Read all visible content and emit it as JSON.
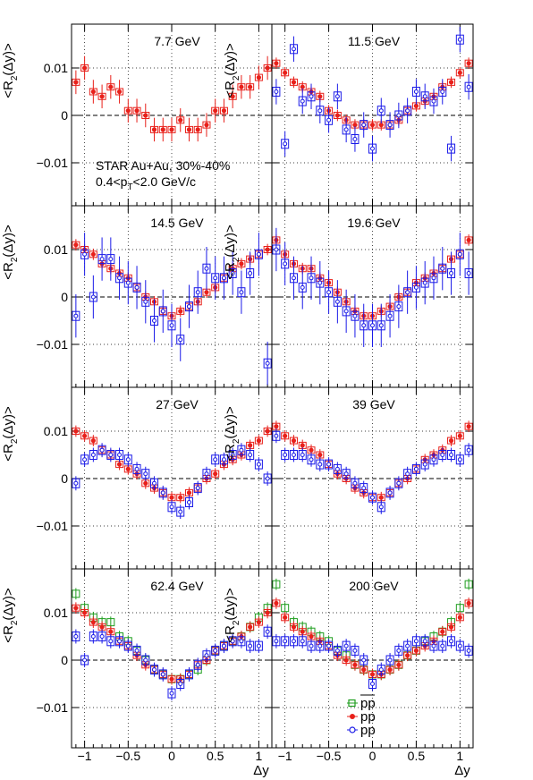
{
  "figure": {
    "ylabel_main": "<R",
    "ylabel_sub": "2",
    "ylabel_tail": "(Δy)>",
    "xlabel": "Δy",
    "annotation_line1": "STAR Au+Au, 30%-40%",
    "annotation_line2_pre": "0.4<p",
    "annotation_line2_sub": "T",
    "annotation_line2_post": "<2.0 GeV/c",
    "x_ticks": [
      "−1",
      "−0.5",
      "0",
      "0.5",
      "1"
    ],
    "y_ticks": [
      "0.01",
      "0",
      "−0.01"
    ],
    "legend": [
      {
        "label": "pp",
        "overline": true,
        "color": "#1f9e1f",
        "marker": "open-square"
      },
      {
        "label": "pp",
        "overline": false,
        "color": "#e8201a",
        "marker": "filled-circle"
      },
      {
        "label": "pp",
        "overline": false,
        "color": "#1a1ae8",
        "marker": "open-circle"
      }
    ],
    "colors": {
      "antiproton": "#1f9e1f",
      "mixed": "#e8201a",
      "proton": "#1a1ae8"
    }
  },
  "chart_data": [
    {
      "type": "scatter",
      "title": "7.7 GeV",
      "xlim": [
        -1.15,
        1.15
      ],
      "ylim": [
        -0.019,
        0.019
      ],
      "grid": true,
      "x": [
        -1.1,
        -1.0,
        -0.9,
        -0.8,
        -0.7,
        -0.6,
        -0.5,
        -0.4,
        -0.3,
        -0.2,
        -0.1,
        0.0,
        0.1,
        0.2,
        0.3,
        0.4,
        0.5,
        0.6,
        0.7,
        0.8,
        0.9,
        1.0,
        1.1
      ],
      "series": [
        {
          "values": [
            0.007,
            0.01,
            0.005,
            0.004,
            0.006,
            0.005,
            0.001,
            0.001,
            0.0,
            -0.003,
            -0.003,
            -0.003,
            -0.001,
            -0.003,
            -0.003,
            -0.002,
            0.001,
            0.001,
            0.004,
            0.006,
            0.006,
            0.008,
            0.01
          ],
          "color": "mixed"
        }
      ]
    },
    {
      "type": "scatter",
      "title": "11.5 GeV",
      "xlim": [
        -1.15,
        1.15
      ],
      "ylim": [
        -0.019,
        0.019
      ],
      "grid": true,
      "x": [
        -1.1,
        -1.0,
        -0.9,
        -0.8,
        -0.7,
        -0.6,
        -0.5,
        -0.4,
        -0.3,
        -0.2,
        -0.1,
        0.0,
        0.1,
        0.2,
        0.3,
        0.4,
        0.5,
        0.6,
        0.7,
        0.8,
        0.9,
        1.0,
        1.1
      ],
      "series": [
        {
          "values": [
            0.011,
            0.009,
            0.007,
            0.006,
            0.005,
            0.004,
            0.001,
            0.0,
            -0.001,
            -0.002,
            -0.002,
            -0.002,
            -0.002,
            -0.002,
            -0.001,
            0.001,
            0.002,
            0.003,
            0.004,
            0.006,
            0.007,
            0.009,
            0.011
          ],
          "color": "mixed"
        },
        {
          "values": [
            0.005,
            -0.006,
            0.014,
            0.003,
            0.004,
            0.001,
            -0.001,
            0.004,
            -0.003,
            -0.005,
            -0.002,
            -0.007,
            0.001,
            -0.002,
            0.0,
            0.001,
            0.005,
            0.004,
            0.003,
            0.005,
            -0.007,
            0.016,
            0.006
          ],
          "color": "proton"
        }
      ]
    },
    {
      "type": "scatter",
      "title": "14.5 GeV",
      "xlim": [
        -1.15,
        1.15
      ],
      "ylim": [
        -0.019,
        0.019
      ],
      "grid": true,
      "x": [
        -1.1,
        -1.0,
        -0.9,
        -0.8,
        -0.7,
        -0.6,
        -0.5,
        -0.4,
        -0.3,
        -0.2,
        -0.1,
        0.0,
        0.1,
        0.2,
        0.3,
        0.4,
        0.5,
        0.6,
        0.7,
        0.8,
        0.9,
        1.0,
        1.1
      ],
      "series": [
        {
          "values": [
            0.011,
            0.01,
            0.009,
            0.007,
            0.006,
            0.005,
            0.004,
            0.002,
            0.0,
            -0.001,
            -0.003,
            -0.004,
            -0.003,
            -0.002,
            -0.001,
            0.001,
            0.002,
            0.004,
            0.006,
            0.007,
            0.008,
            0.009,
            0.01
          ],
          "color": "mixed"
        },
        {
          "values": [
            -0.004,
            0.009,
            0.0,
            0.008,
            0.008,
            0.004,
            0.003,
            0.002,
            -0.001,
            -0.005,
            -0.003,
            -0.006,
            -0.009,
            -0.002,
            0.001,
            0.006,
            0.004,
            0.004,
            0.005,
            0.001,
            0.005,
            0.009,
            -0.014
          ],
          "color": "proton"
        }
      ]
    },
    {
      "type": "scatter",
      "title": "19.6 GeV",
      "xlim": [
        -1.15,
        1.15
      ],
      "ylim": [
        -0.019,
        0.019
      ],
      "grid": true,
      "x": [
        -1.1,
        -1.0,
        -0.9,
        -0.8,
        -0.7,
        -0.6,
        -0.5,
        -0.4,
        -0.3,
        -0.2,
        -0.1,
        0.0,
        0.1,
        0.2,
        0.3,
        0.4,
        0.5,
        0.6,
        0.7,
        0.8,
        0.9,
        1.0,
        1.1
      ],
      "series": [
        {
          "values": [
            0.012,
            0.009,
            0.007,
            0.006,
            0.006,
            0.004,
            0.003,
            0.001,
            -0.001,
            -0.003,
            -0.004,
            -0.004,
            -0.003,
            -0.002,
            0.0,
            0.001,
            0.003,
            0.004,
            0.005,
            0.006,
            0.008,
            0.009,
            0.012
          ],
          "color": "mixed"
        },
        {
          "values": [
            0.01,
            0.007,
            0.004,
            0.002,
            0.004,
            0.003,
            0.001,
            -0.001,
            -0.003,
            -0.004,
            -0.006,
            -0.006,
            -0.006,
            -0.004,
            -0.002,
            0.001,
            0.002,
            0.003,
            0.004,
            0.006,
            0.005,
            0.009,
            0.005
          ],
          "color": "proton"
        }
      ]
    },
    {
      "type": "scatter",
      "title": "27 GeV",
      "xlim": [
        -1.15,
        1.15
      ],
      "ylim": [
        -0.019,
        0.019
      ],
      "grid": true,
      "x": [
        -1.1,
        -1.0,
        -0.9,
        -0.8,
        -0.7,
        -0.6,
        -0.5,
        -0.4,
        -0.3,
        -0.2,
        -0.1,
        0.0,
        0.1,
        0.2,
        0.3,
        0.4,
        0.5,
        0.6,
        0.7,
        0.8,
        0.9,
        1.0,
        1.1
      ],
      "series": [
        {
          "values": [
            0.01,
            0.009,
            0.008,
            0.006,
            0.005,
            0.003,
            0.002,
            0.001,
            -0.001,
            -0.002,
            -0.003,
            -0.004,
            -0.004,
            -0.003,
            -0.002,
            0.0,
            0.001,
            0.003,
            0.004,
            0.005,
            0.007,
            0.008,
            0.01
          ],
          "color": "mixed"
        },
        {
          "values": [
            -0.001,
            0.004,
            0.005,
            0.006,
            0.005,
            0.005,
            0.004,
            0.002,
            0.001,
            -0.001,
            -0.003,
            -0.006,
            -0.007,
            -0.005,
            -0.002,
            0.001,
            0.004,
            0.004,
            0.005,
            0.006,
            0.005,
            0.003,
            0.0
          ],
          "color": "proton"
        }
      ]
    },
    {
      "type": "scatter",
      "title": "39 GeV",
      "xlim": [
        -1.15,
        1.15
      ],
      "ylim": [
        -0.019,
        0.019
      ],
      "grid": true,
      "x": [
        -1.1,
        -1.0,
        -0.9,
        -0.8,
        -0.7,
        -0.6,
        -0.5,
        -0.4,
        -0.3,
        -0.2,
        -0.1,
        0.0,
        0.1,
        0.2,
        0.3,
        0.4,
        0.5,
        0.6,
        0.7,
        0.8,
        0.9,
        1.0,
        1.1
      ],
      "series": [
        {
          "values": [
            0.011,
            0.009,
            0.008,
            0.007,
            0.006,
            0.005,
            0.003,
            0.001,
            0.0,
            -0.002,
            -0.003,
            -0.004,
            -0.004,
            -0.003,
            -0.001,
            0.0,
            0.002,
            0.004,
            0.005,
            0.006,
            0.008,
            0.009,
            0.011
          ],
          "color": "mixed"
        },
        {
          "values": [
            0.009,
            0.005,
            0.005,
            0.005,
            0.004,
            0.003,
            0.003,
            0.002,
            0.001,
            -0.001,
            -0.002,
            -0.004,
            -0.006,
            -0.003,
            -0.001,
            0.001,
            0.002,
            0.003,
            0.004,
            0.005,
            0.005,
            0.004,
            0.006
          ],
          "color": "proton"
        }
      ]
    },
    {
      "type": "scatter",
      "title": "62.4 GeV",
      "xlim": [
        -1.15,
        1.15
      ],
      "ylim": [
        -0.019,
        0.019
      ],
      "grid": true,
      "x": [
        -1.1,
        -1.0,
        -0.9,
        -0.8,
        -0.7,
        -0.6,
        -0.5,
        -0.4,
        -0.3,
        -0.2,
        -0.1,
        0.0,
        0.1,
        0.2,
        0.3,
        0.4,
        0.5,
        0.6,
        0.7,
        0.8,
        0.9,
        1.0,
        1.1
      ],
      "series": [
        {
          "values": [
            0.014,
            0.011,
            0.009,
            0.008,
            0.008,
            0.005,
            0.004,
            0.002,
            0.0,
            -0.002,
            -0.003,
            -0.004,
            -0.004,
            -0.003,
            -0.002,
            0.0,
            0.002,
            0.003,
            0.004,
            0.005,
            0.007,
            0.009,
            0.011
          ],
          "color": "antiproton"
        },
        {
          "values": [
            0.011,
            0.01,
            0.008,
            0.007,
            0.006,
            0.004,
            0.003,
            0.001,
            -0.001,
            -0.002,
            -0.003,
            -0.004,
            -0.004,
            -0.003,
            -0.001,
            0.0,
            0.002,
            0.003,
            0.004,
            0.005,
            0.007,
            0.008,
            0.01
          ],
          "color": "mixed"
        },
        {
          "values": [
            0.005,
            0.0,
            0.005,
            0.005,
            0.004,
            0.004,
            0.003,
            0.002,
            0.0,
            -0.002,
            -0.003,
            -0.007,
            -0.005,
            -0.003,
            -0.001,
            0.001,
            0.002,
            0.003,
            0.004,
            0.004,
            0.003,
            0.003,
            0.006
          ],
          "color": "proton"
        }
      ]
    },
    {
      "type": "scatter",
      "title": "200 GeV",
      "xlim": [
        -1.15,
        1.15
      ],
      "ylim": [
        -0.019,
        0.019
      ],
      "grid": true,
      "x": [
        -1.1,
        -1.0,
        -0.9,
        -0.8,
        -0.7,
        -0.6,
        -0.5,
        -0.4,
        -0.3,
        -0.2,
        -0.1,
        0.0,
        0.1,
        0.2,
        0.3,
        0.4,
        0.5,
        0.6,
        0.7,
        0.8,
        0.9,
        1.0,
        1.1
      ],
      "series": [
        {
          "values": [
            0.016,
            0.011,
            0.008,
            0.007,
            0.006,
            0.005,
            0.004,
            0.002,
            0.001,
            -0.001,
            -0.002,
            -0.003,
            -0.003,
            -0.002,
            -0.001,
            0.001,
            0.002,
            0.004,
            0.005,
            0.006,
            0.008,
            0.011,
            0.016
          ],
          "color": "antiproton"
        },
        {
          "values": [
            0.012,
            0.009,
            0.007,
            0.006,
            0.005,
            0.004,
            0.003,
            0.001,
            0.0,
            -0.001,
            -0.002,
            -0.003,
            -0.003,
            -0.002,
            -0.001,
            0.001,
            0.002,
            0.003,
            0.004,
            0.006,
            0.007,
            0.009,
            0.012
          ],
          "color": "mixed"
        },
        {
          "values": [
            0.004,
            0.004,
            0.004,
            0.004,
            0.003,
            0.003,
            0.003,
            0.002,
            0.003,
            0.002,
            0.0,
            -0.005,
            -0.002,
            0.0,
            0.002,
            0.003,
            0.004,
            0.004,
            0.003,
            0.003,
            0.004,
            0.003,
            0.002
          ],
          "color": "proton"
        }
      ]
    }
  ]
}
